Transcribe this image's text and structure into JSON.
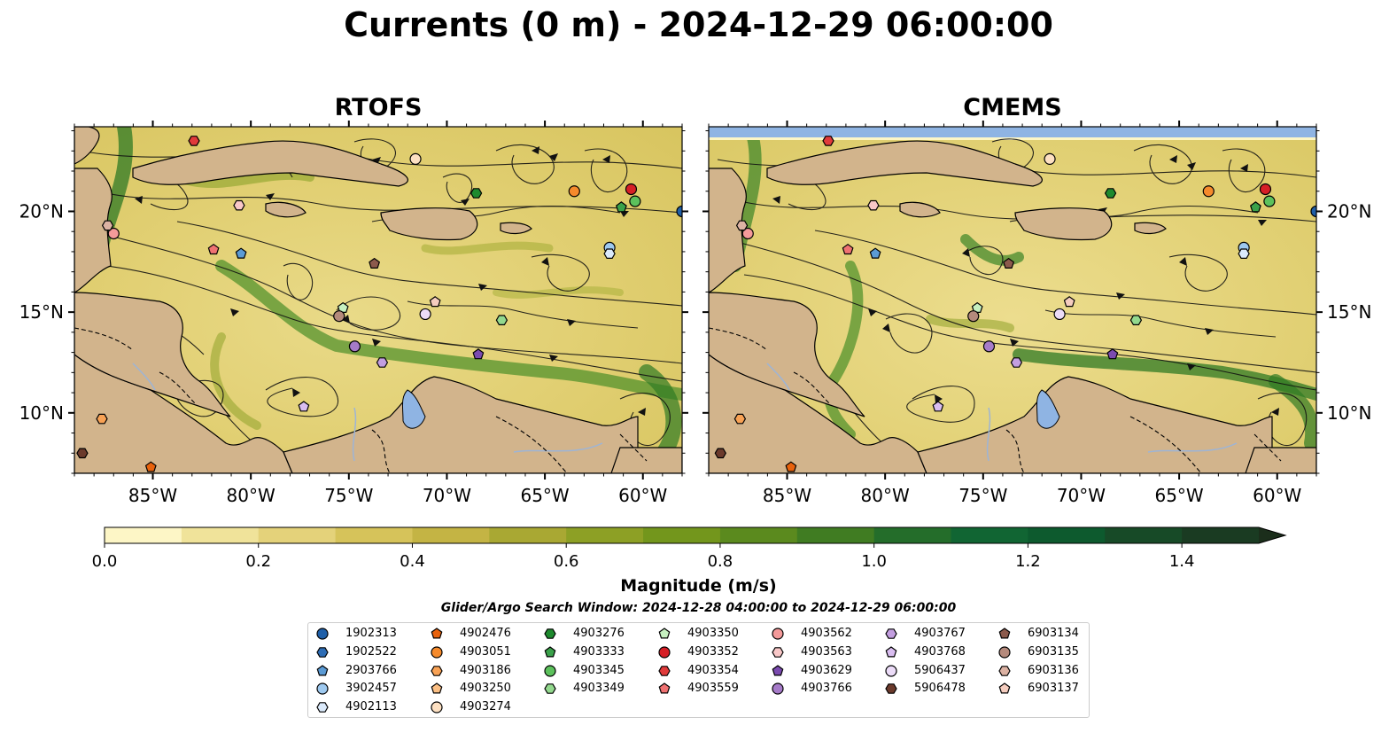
{
  "title": "Currents (0 m) - 2024-12-29 06:00:00",
  "panels": [
    {
      "title": "RTOFS"
    },
    {
      "title": "CMEMS"
    }
  ],
  "axes": {
    "lon_ticks": [
      "85°W",
      "80°W",
      "75°W",
      "70°W",
      "65°W",
      "60°W"
    ],
    "lon_values": [
      -85,
      -80,
      -75,
      -70,
      -65,
      -60
    ],
    "lat_ticks": [
      "20°N",
      "15°N",
      "10°N"
    ],
    "lat_values": [
      20,
      15,
      10
    ],
    "lon_range": [
      -89,
      -58
    ],
    "lat_range": [
      7,
      24.2
    ]
  },
  "colorbar": {
    "label": "Magnitude (m/s)",
    "range": [
      0,
      1.5
    ],
    "extend": "max",
    "tick_labels": [
      "0.0",
      "0.2",
      "0.4",
      "0.6",
      "0.8",
      "1.0",
      "1.2",
      "1.4"
    ],
    "tick_values": [
      0,
      0.2,
      0.4,
      0.6,
      0.8,
      1.0,
      1.2,
      1.4
    ],
    "colors": [
      "#fdf6c6",
      "#f0e39a",
      "#e4d27a",
      "#d6c35a",
      "#c4b444",
      "#a9a833",
      "#8da025",
      "#73961c",
      "#5b8a1e",
      "#407c22",
      "#246d2a",
      "#116533",
      "#0d5a2e",
      "#174a27",
      "#1a3b22",
      "#1b2e1b"
    ]
  },
  "search_window": "Glider/Argo Search Window: 2024-12-28 04:00:00 to 2024-12-29 06:00:00",
  "colors": {
    "land": "#d2b48c",
    "water_inland": "#8fb4e3",
    "rivers": "#9db4d6"
  },
  "legend": {
    "items": [
      {
        "id": "1902313",
        "color": "#1f5fa8",
        "marker": "circle",
        "lon": -58,
        "lat": 20,
        "cm_lon": -58,
        "cm_lat": 20
      },
      {
        "id": "1902522",
        "color": "#2e6db5",
        "marker": "hexagon",
        "lon": null,
        "lat": null
      },
      {
        "id": "2903766",
        "color": "#5b9bd5",
        "marker": "pentagon",
        "lon": -80.5,
        "lat": 17.9,
        "cm_lon": -80.5,
        "cm_lat": 17.9
      },
      {
        "id": "3902457",
        "color": "#9ec9ef",
        "marker": "circle",
        "lon": -61.7,
        "lat": 18.2,
        "cm_lon": -61.7,
        "cm_lat": 18.2
      },
      {
        "id": "4902113",
        "color": "#dbeafb",
        "marker": "hexagon",
        "lon": -61.7,
        "lat": 17.9,
        "cm_lon": -61.7,
        "cm_lat": 17.9
      },
      {
        "id": "4902476",
        "color": "#e8620c",
        "marker": "pentagon",
        "lon": -85.1,
        "lat": 7.3,
        "cm_lon": -84.8,
        "cm_lat": 7.3
      },
      {
        "id": "4903051",
        "color": "#f58a2c",
        "marker": "circle",
        "lon": -63.5,
        "lat": 21.0,
        "cm_lon": -63.5,
        "cm_lat": 21.0
      },
      {
        "id": "4903186",
        "color": "#f8a255",
        "marker": "hexagon",
        "lon": -87.6,
        "lat": 9.7,
        "cm_lon": -87.4,
        "cm_lat": 9.7
      },
      {
        "id": "4903250",
        "color": "#fbbf84",
        "marker": "pentagon",
        "lon": null,
        "lat": null
      },
      {
        "id": "4903274",
        "color": "#fde0c2",
        "marker": "circle",
        "lon": -71.6,
        "lat": 22.6,
        "cm_lon": -71.6,
        "cm_lat": 22.6
      },
      {
        "id": "4903276",
        "color": "#1e8a2e",
        "marker": "hexagon",
        "lon": -68.5,
        "lat": 20.9,
        "cm_lon": -68.5,
        "cm_lat": 20.9
      },
      {
        "id": "4903333",
        "color": "#3aa14a",
        "marker": "pentagon",
        "lon": -61.1,
        "lat": 20.2,
        "cm_lon": -61.1,
        "cm_lat": 20.2
      },
      {
        "id": "4903345",
        "color": "#5cc15c",
        "marker": "circle",
        "lon": -60.4,
        "lat": 20.5,
        "cm_lon": -60.4,
        "cm_lat": 20.5
      },
      {
        "id": "4903349",
        "color": "#93d98e",
        "marker": "hexagon",
        "lon": -67.2,
        "lat": 14.6,
        "cm_lon": -67.2,
        "cm_lat": 14.6
      },
      {
        "id": "4903350",
        "color": "#c6f0c0",
        "marker": "pentagon",
        "lon": -75.3,
        "lat": 15.2,
        "cm_lon": -75.3,
        "cm_lat": 15.2
      },
      {
        "id": "4903352",
        "color": "#d61f26",
        "marker": "circle",
        "lon": -60.6,
        "lat": 21.1,
        "cm_lon": -60.6,
        "cm_lat": 21.1
      },
      {
        "id": "4903354",
        "color": "#e03a3a",
        "marker": "hexagon",
        "lon": -82.9,
        "lat": 23.5,
        "cm_lon": -82.9,
        "cm_lat": 23.5
      },
      {
        "id": "4903559",
        "color": "#f07272",
        "marker": "pentagon",
        "lon": -81.9,
        "lat": 18.1,
        "cm_lon": -81.9,
        "cm_lat": 18.1
      },
      {
        "id": "4903562",
        "color": "#f49a9a",
        "marker": "circle",
        "lon": -87.0,
        "lat": 18.9,
        "cm_lon": -87.0,
        "cm_lat": 18.9
      },
      {
        "id": "4903563",
        "color": "#f9c8c8",
        "marker": "hexagon",
        "lon": -80.6,
        "lat": 20.3,
        "cm_lon": -80.6,
        "cm_lat": 20.3
      },
      {
        "id": "4903629",
        "color": "#7b4bb0",
        "marker": "pentagon",
        "lon": -68.4,
        "lat": 12.9,
        "cm_lon": -68.4,
        "cm_lat": 12.9
      },
      {
        "id": "4903766",
        "color": "#a67bc9",
        "marker": "circle",
        "lon": -74.7,
        "lat": 13.3,
        "cm_lon": -74.7,
        "cm_lat": 13.3
      },
      {
        "id": "4903767",
        "color": "#c39ee0",
        "marker": "hexagon",
        "lon": -73.3,
        "lat": 12.5,
        "cm_lon": -73.3,
        "cm_lat": 12.5
      },
      {
        "id": "4903768",
        "color": "#d9bdf0",
        "marker": "pentagon",
        "lon": -77.3,
        "lat": 10.3,
        "cm_lon": -77.3,
        "cm_lat": 10.3
      },
      {
        "id": "5906437",
        "color": "#ecdcf8",
        "marker": "circle",
        "lon": -71.1,
        "lat": 14.9,
        "cm_lon": -71.1,
        "cm_lat": 14.9
      },
      {
        "id": "5906478",
        "color": "#6b3a2c",
        "marker": "hexagon",
        "lon": -88.6,
        "lat": 8.0,
        "cm_lon": -88.4,
        "cm_lat": 8.0
      },
      {
        "id": "6903134",
        "color": "#8c5a4c",
        "marker": "pentagon",
        "lon": -73.7,
        "lat": 17.4,
        "cm_lon": -73.7,
        "cm_lat": 17.4
      },
      {
        "id": "6903135",
        "color": "#b58a7c",
        "marker": "circle",
        "lon": -75.5,
        "lat": 14.8,
        "cm_lon": -75.5,
        "cm_lat": 14.8
      },
      {
        "id": "6903136",
        "color": "#dcb2a3",
        "marker": "hexagon",
        "lon": -87.3,
        "lat": 19.3,
        "cm_lon": -87.3,
        "cm_lat": 19.3
      },
      {
        "id": "6903137",
        "color": "#f5cdbf",
        "marker": "pentagon",
        "lon": -70.6,
        "lat": 15.5,
        "cm_lon": -70.6,
        "cm_lat": 15.5
      }
    ]
  }
}
